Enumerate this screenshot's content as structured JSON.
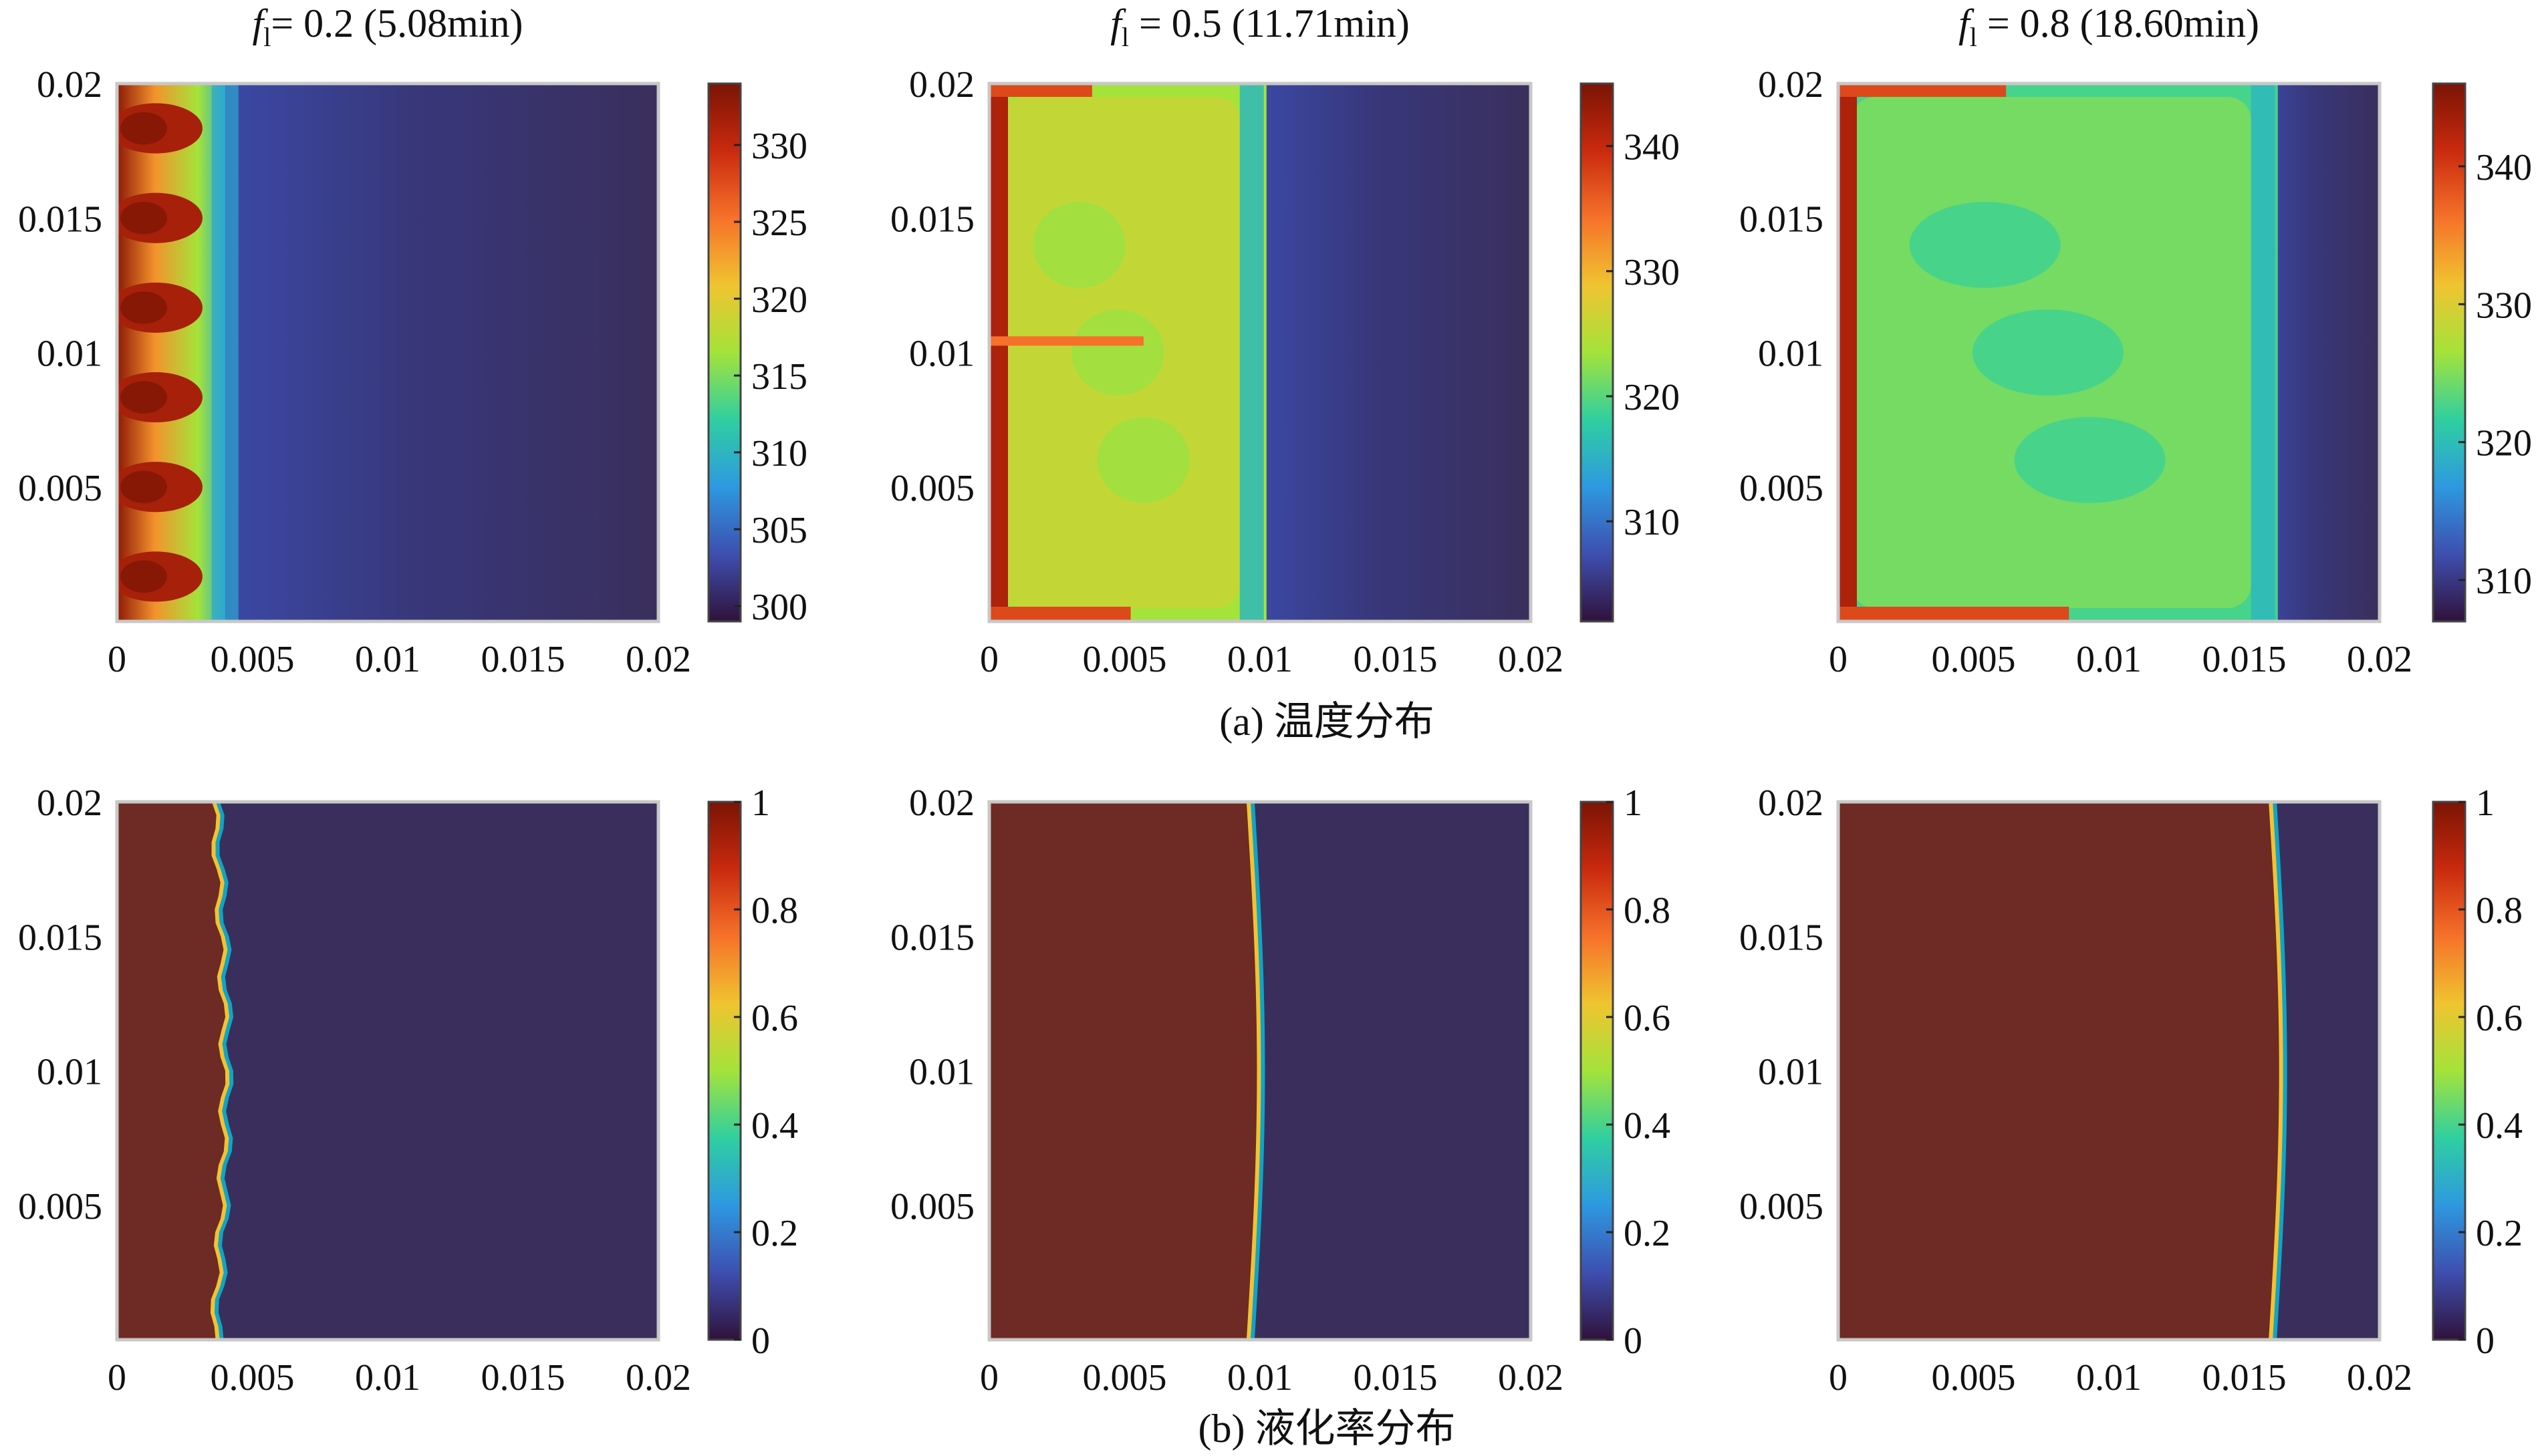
{
  "chart_data": [
    {
      "type": "heatmap",
      "row": "a",
      "title": {
        "var": "f",
        "sub": "l",
        "text": "= 0.2 (5.08min)"
      },
      "quantity": "temperature",
      "xlim": [
        0,
        0.02
      ],
      "ylim": [
        0,
        0.02
      ],
      "xticks": [
        "0",
        "0.005",
        "0.01",
        "0.015",
        "0.02"
      ],
      "yticks": [
        "0.005",
        "0.01",
        "0.015",
        "0.02"
      ],
      "clim": [
        299,
        334
      ],
      "cbar_ticks": [
        300,
        305,
        310,
        315,
        320,
        325,
        330
      ],
      "melt_front": 0.0035,
      "wavy_cells": 6
    },
    {
      "type": "heatmap",
      "row": "a",
      "title": {
        "var": "f",
        "sub": "l",
        "text": " = 0.5 (11.71min)"
      },
      "quantity": "temperature",
      "xlim": [
        0,
        0.02
      ],
      "ylim": [
        0,
        0.02
      ],
      "xticks": [
        "0",
        "0.005",
        "0.01",
        "0.015",
        "0.02"
      ],
      "yticks": [
        "0.005",
        "0.01",
        "0.015",
        "0.02"
      ],
      "clim": [
        302,
        345
      ],
      "cbar_ticks": [
        310,
        320,
        330,
        340
      ],
      "melt_front": 0.0095
    },
    {
      "type": "heatmap",
      "row": "a",
      "title": {
        "var": "f",
        "sub": "l",
        "text": " = 0.8 (18.60min)"
      },
      "quantity": "temperature",
      "xlim": [
        0,
        0.02
      ],
      "ylim": [
        0,
        0.02
      ],
      "xticks": [
        "0",
        "0.005",
        "0.01",
        "0.015",
        "0.02"
      ],
      "yticks": [
        "0.005",
        "0.01",
        "0.015",
        "0.02"
      ],
      "clim": [
        307,
        346
      ],
      "cbar_ticks": [
        310,
        320,
        330,
        340
      ],
      "melt_front": 0.0155
    },
    {
      "type": "heatmap",
      "row": "b",
      "quantity": "liquid fraction",
      "xlim": [
        0,
        0.02
      ],
      "ylim": [
        0,
        0.02
      ],
      "xticks": [
        "0",
        "0.005",
        "0.01",
        "0.015",
        "0.02"
      ],
      "yticks": [
        "0.005",
        "0.01",
        "0.015",
        "0.02"
      ],
      "clim": [
        0,
        1
      ],
      "cbar_ticks": [
        "0",
        "0.2",
        "0.4",
        "0.6",
        "0.8",
        "1"
      ],
      "melt_front": 0.0038
    },
    {
      "type": "heatmap",
      "row": "b",
      "quantity": "liquid fraction",
      "xlim": [
        0,
        0.02
      ],
      "ylim": [
        0,
        0.02
      ],
      "xticks": [
        "0",
        "0.005",
        "0.01",
        "0.015",
        "0.02"
      ],
      "yticks": [
        "0.005",
        "0.01",
        "0.015",
        "0.02"
      ],
      "clim": [
        0,
        1
      ],
      "cbar_ticks": [
        "0",
        "0.2",
        "0.4",
        "0.6",
        "0.8",
        "1"
      ],
      "melt_front": 0.0098
    },
    {
      "type": "heatmap",
      "row": "b",
      "quantity": "liquid fraction",
      "xlim": [
        0,
        0.02
      ],
      "ylim": [
        0,
        0.02
      ],
      "xticks": [
        "0",
        "0.005",
        "0.01",
        "0.015",
        "0.02"
      ],
      "yticks": [
        "0.005",
        "0.01",
        "0.015",
        "0.02"
      ],
      "clim": [
        0,
        1
      ],
      "cbar_ticks": [
        "0",
        "0.2",
        "0.4",
        "0.6",
        "0.8",
        "1"
      ],
      "melt_front": 0.0162
    }
  ],
  "captions": {
    "a": "(a) 温度分布",
    "b": "(b) 液化率分布"
  },
  "colors": {
    "cold": "#3a2f5c",
    "liquid": "#6e2a24",
    "axis": "#c8c8c8",
    "colormap": [
      "#30123b",
      "#3e4fb0",
      "#2d99e0",
      "#2fcfa0",
      "#a4e33a",
      "#f0c430",
      "#f6712a",
      "#c92a0e",
      "#7a1405"
    ]
  }
}
